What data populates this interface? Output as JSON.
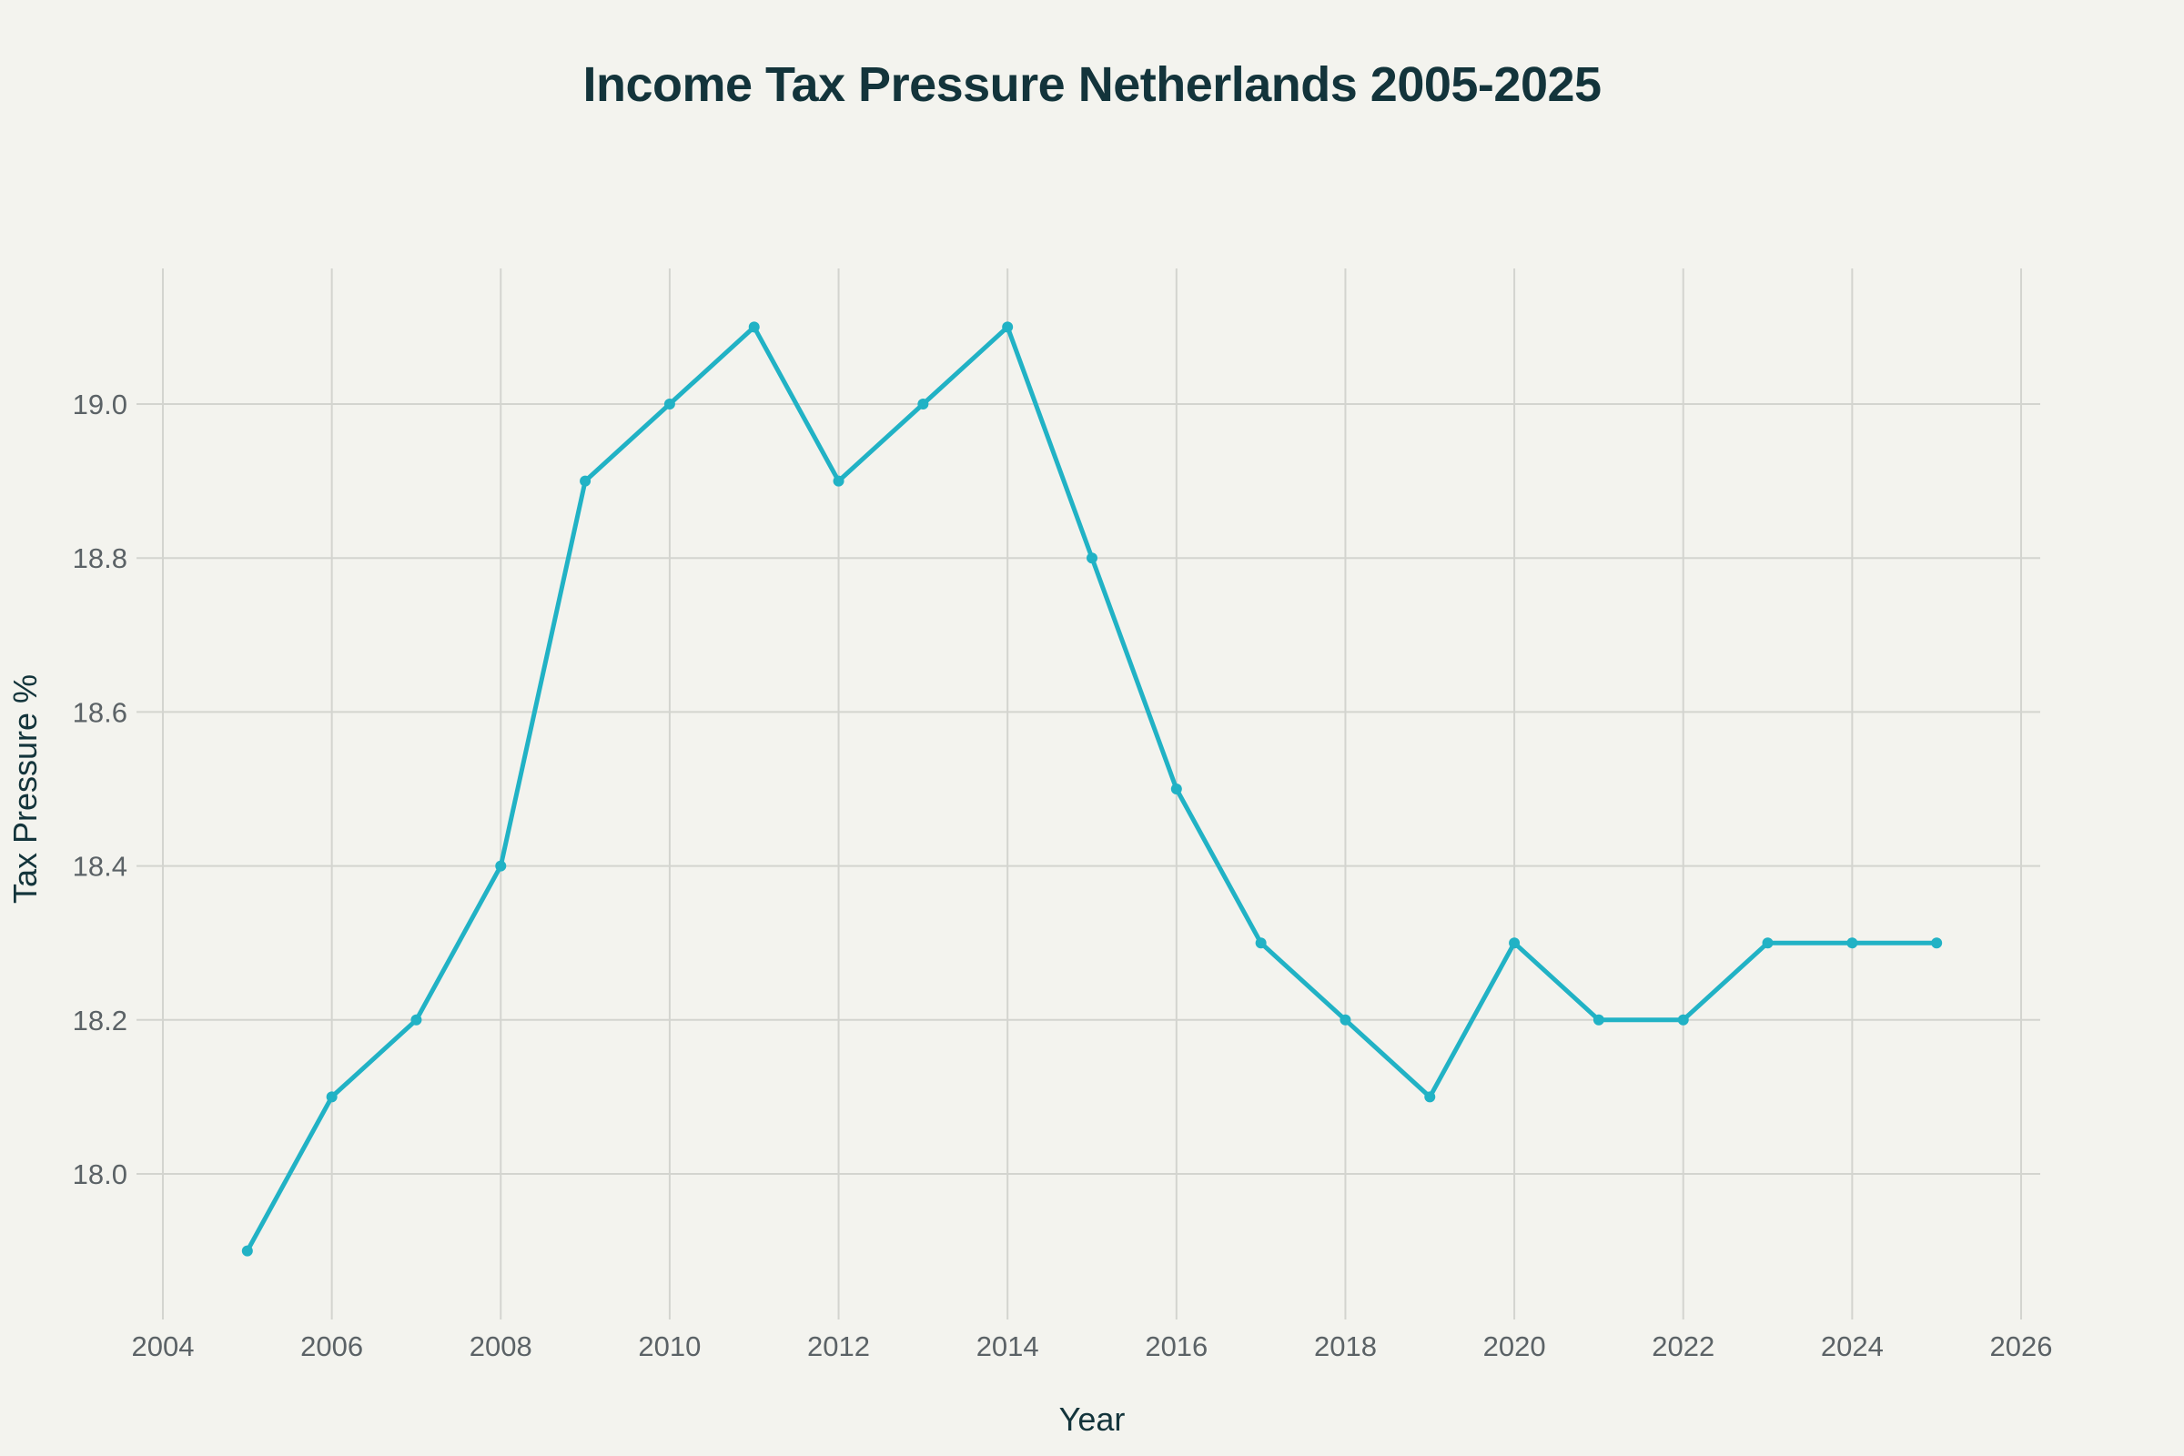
{
  "chart_data": {
    "type": "line",
    "title": "Income Tax Pressure Netherlands 2005-2025",
    "xlabel": "Year",
    "ylabel": "Tax Pressure %",
    "xlim": [
      2004,
      2026
    ],
    "ylim": [
      17.82,
      19.18
    ],
    "xticks": [
      2004,
      2006,
      2008,
      2010,
      2012,
      2014,
      2016,
      2018,
      2020,
      2022,
      2024,
      2026
    ],
    "yticks": [
      18.0,
      18.2,
      18.4,
      18.6,
      18.8,
      19.0
    ],
    "ytick_labels": [
      "18.0",
      "18.2",
      "18.4",
      "18.6",
      "18.8",
      "19.0"
    ],
    "grid": true,
    "legend": "none",
    "colors": {
      "line": "#21b2c5",
      "grid": "#d3d4cf",
      "background": "#f3f3ee",
      "title": "#13343b"
    },
    "series": [
      {
        "x": [
          2005,
          2006,
          2007,
          2008,
          2009,
          2010,
          2011,
          2012,
          2013,
          2014,
          2015,
          2016,
          2017,
          2018,
          2019,
          2020,
          2021,
          2022,
          2023,
          2024,
          2025
        ],
        "y": [
          17.9,
          18.1,
          18.2,
          18.4,
          18.9,
          19.0,
          19.1,
          18.9,
          19.0,
          19.1,
          18.8,
          18.5,
          18.3,
          18.2,
          18.1,
          18.3,
          18.2,
          18.2,
          18.3,
          18.3,
          18.3
        ]
      }
    ]
  }
}
